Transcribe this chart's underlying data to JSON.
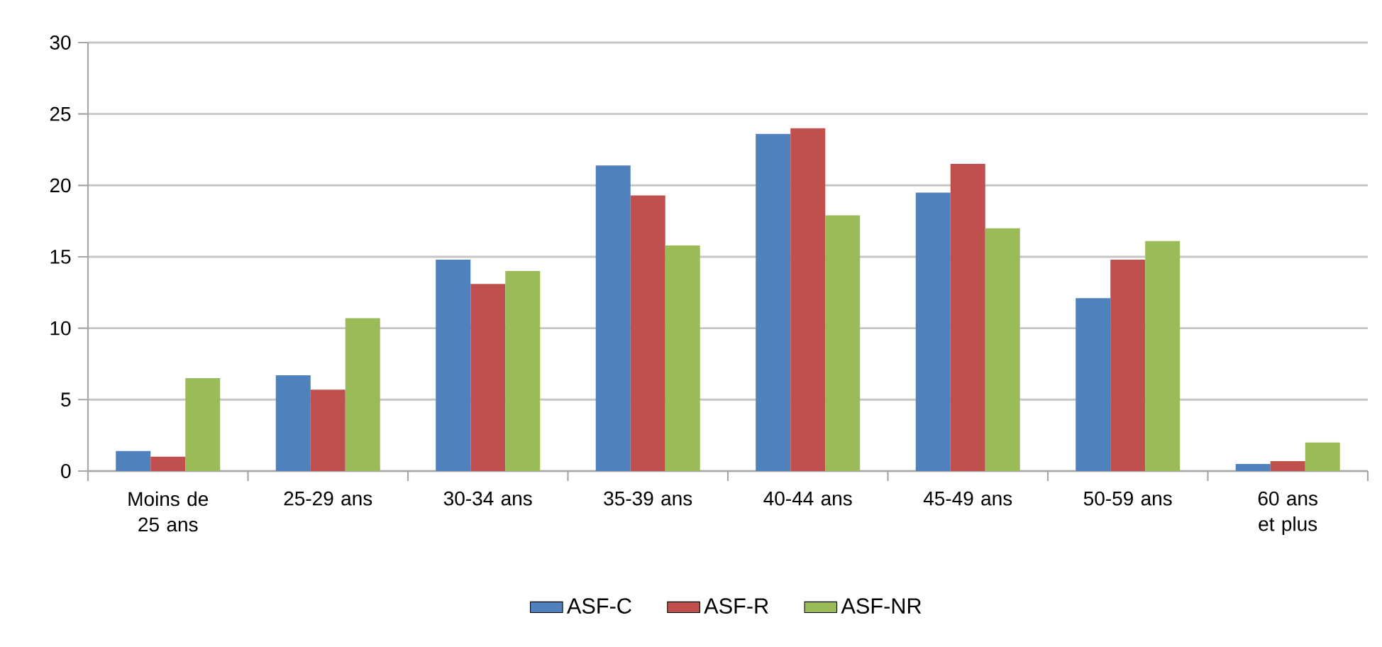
{
  "chart_data": {
    "type": "bar",
    "categories": [
      "Moins de 25 ans",
      "25-29 ans",
      "30-34 ans",
      "35-39 ans",
      "40-44 ans",
      "45-49 ans",
      "50-59 ans",
      "60 ans et plus"
    ],
    "series": [
      {
        "name": "ASF-C",
        "color": "#4f81bd",
        "values": [
          1.4,
          6.7,
          14.8,
          21.4,
          23.6,
          19.5,
          12.1,
          0.5
        ]
      },
      {
        "name": "ASF-R",
        "color": "#c0504d",
        "values": [
          1.0,
          5.7,
          13.1,
          19.3,
          24.0,
          21.5,
          14.8,
          0.7
        ]
      },
      {
        "name": "ASF-NR",
        "color": "#9bbb59",
        "values": [
          6.5,
          10.7,
          14.0,
          15.8,
          17.9,
          17.0,
          16.1,
          2.0
        ]
      }
    ],
    "ylim": [
      0,
      30
    ],
    "yticks": [
      0,
      5,
      10,
      15,
      20,
      25,
      30
    ],
    "grid": "y",
    "legend": "bottom"
  }
}
